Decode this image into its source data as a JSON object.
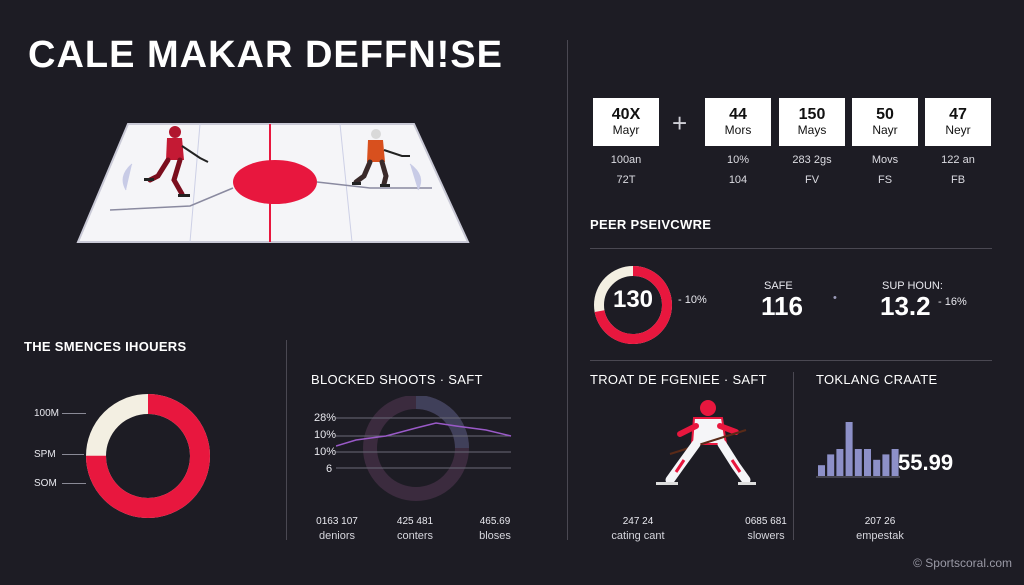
{
  "title": "CALE MAKAR DEFFN!SE",
  "watermark": "© Sportscoral.com",
  "stats": [
    {
      "value": "40X",
      "label": "Mayr",
      "sub1": "100an",
      "sub2": "72T"
    },
    {
      "value": "44",
      "label": "Mors",
      "sub1": "10%",
      "sub2": "104"
    },
    {
      "value": "150",
      "label": "Mays",
      "sub1": "283 2gs",
      "sub2": "FV"
    },
    {
      "value": "50",
      "label": "Nayr",
      "sub1": "Movs",
      "sub2": "FS"
    },
    {
      "value": "47",
      "label": "Neyr",
      "sub1": "122 an",
      "sub2": "FB"
    }
  ],
  "plus_sign": "+",
  "peer": {
    "title": "PEER PSEIVCWRE",
    "donut_value": "130",
    "donut_delta": "- 10%",
    "safe_label": "SAFE",
    "safe_value": "116",
    "dot": "•",
    "sup_label": "SUP HOUN:",
    "sup_value": "13.2",
    "sup_delta": "- 16%",
    "fill_fraction": 0.72
  },
  "left_section": {
    "title": "THE SMENCES IHOUERS",
    "axis_labels": [
      "100M",
      "SPM",
      "SOM"
    ],
    "ring_red_fraction": 0.75
  },
  "blocked": {
    "title": "BLOCKED SHOOTS · SAFT",
    "y_labels": [
      "28%",
      "10%",
      "10%",
      "6"
    ],
    "footers": [
      {
        "value": "0163 107",
        "label": "deniors"
      },
      {
        "value": "425 481",
        "label": "conters"
      },
      {
        "value": "465.69",
        "label": "bloses"
      }
    ]
  },
  "troat": {
    "title": "TROAT DE FGENIEE · SAFT",
    "footers": [
      {
        "value": "247 24",
        "label": "cating cant"
      },
      {
        "value": "0685 681",
        "label": "slowers"
      }
    ]
  },
  "tokling": {
    "title": "TOKLANG CRAATE",
    "value": "55.99",
    "footer_value": "207 26",
    "footer_label": "empestak"
  },
  "chart_data": {
    "type": "bar",
    "title": "TOKLANG CRAATE",
    "categories": [
      "1",
      "2",
      "3",
      "4",
      "5",
      "6",
      "7",
      "8",
      "9"
    ],
    "values": [
      2,
      4,
      5,
      10,
      5,
      5,
      3,
      4,
      5
    ],
    "ylim": [
      0,
      10
    ],
    "xlabel": "",
    "ylabel": ""
  },
  "colors": {
    "accent_red": "#e8173e",
    "cream": "#f3efe2",
    "bar_blue": "#8d90c8",
    "bg": "#1d1c24"
  }
}
